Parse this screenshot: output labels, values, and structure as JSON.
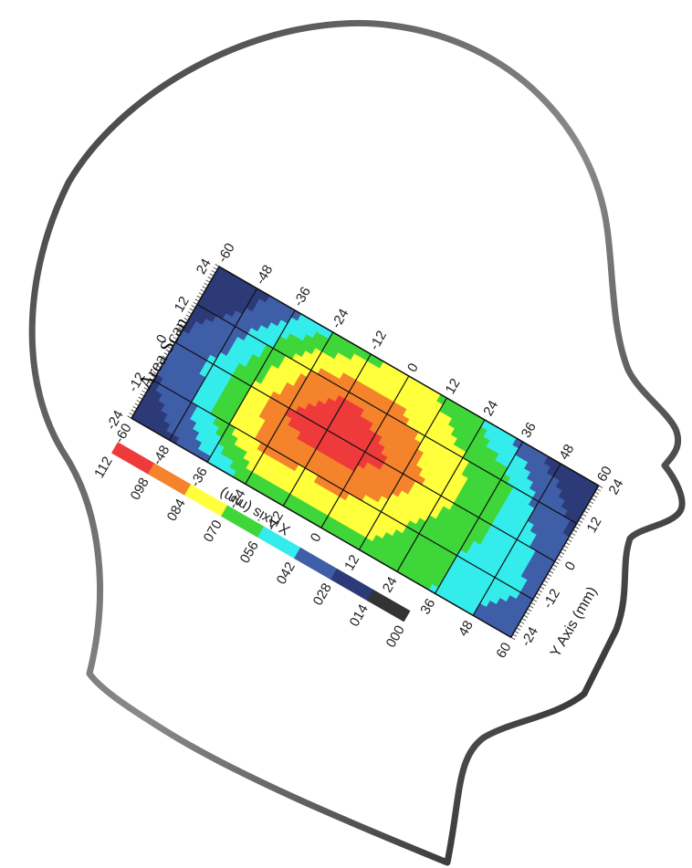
{
  "chart_data": {
    "type": "heatmap",
    "title": "Area Scan",
    "xlabel": "X Axis (mm)",
    "ylabel": "Y Axis (mm)",
    "x_ticks": [
      "-60",
      "-48",
      "-36",
      "-24",
      "-12",
      "0",
      "12",
      "24",
      "36",
      "48",
      "60"
    ],
    "y_ticks": [
      "-24",
      "-12",
      "0",
      "12",
      "24"
    ],
    "xlim": [
      -60,
      60
    ],
    "ylim": [
      -24,
      24
    ],
    "legend_labels": [
      "112",
      "098",
      "084",
      "070",
      "056",
      "042",
      "028",
      "014",
      "000"
    ],
    "legend_colors": [
      "#ee3a3a",
      "#f5832b",
      "#ffff3c",
      "#3fd63a",
      "#34ecec",
      "#3f5ea8",
      "#2c3a78",
      "#333333"
    ],
    "x": [
      -60,
      -48,
      -36,
      -24,
      -12,
      0,
      12,
      24,
      36,
      48,
      60
    ],
    "y": [
      -24,
      -12,
      0,
      12,
      24
    ],
    "z": [
      [
        20,
        25,
        40,
        60,
        62,
        64,
        66,
        64,
        55,
        40,
        28
      ],
      [
        26,
        40,
        70,
        90,
        85,
        88,
        78,
        66,
        56,
        50,
        40
      ],
      [
        30,
        45,
        70,
        98,
        112,
        105,
        92,
        75,
        60,
        50,
        30
      ],
      [
        22,
        32,
        60,
        84,
        96,
        92,
        80,
        72,
        62,
        38,
        25
      ],
      [
        14,
        22,
        38,
        55,
        66,
        72,
        68,
        54,
        36,
        22,
        18
      ]
    ]
  }
}
